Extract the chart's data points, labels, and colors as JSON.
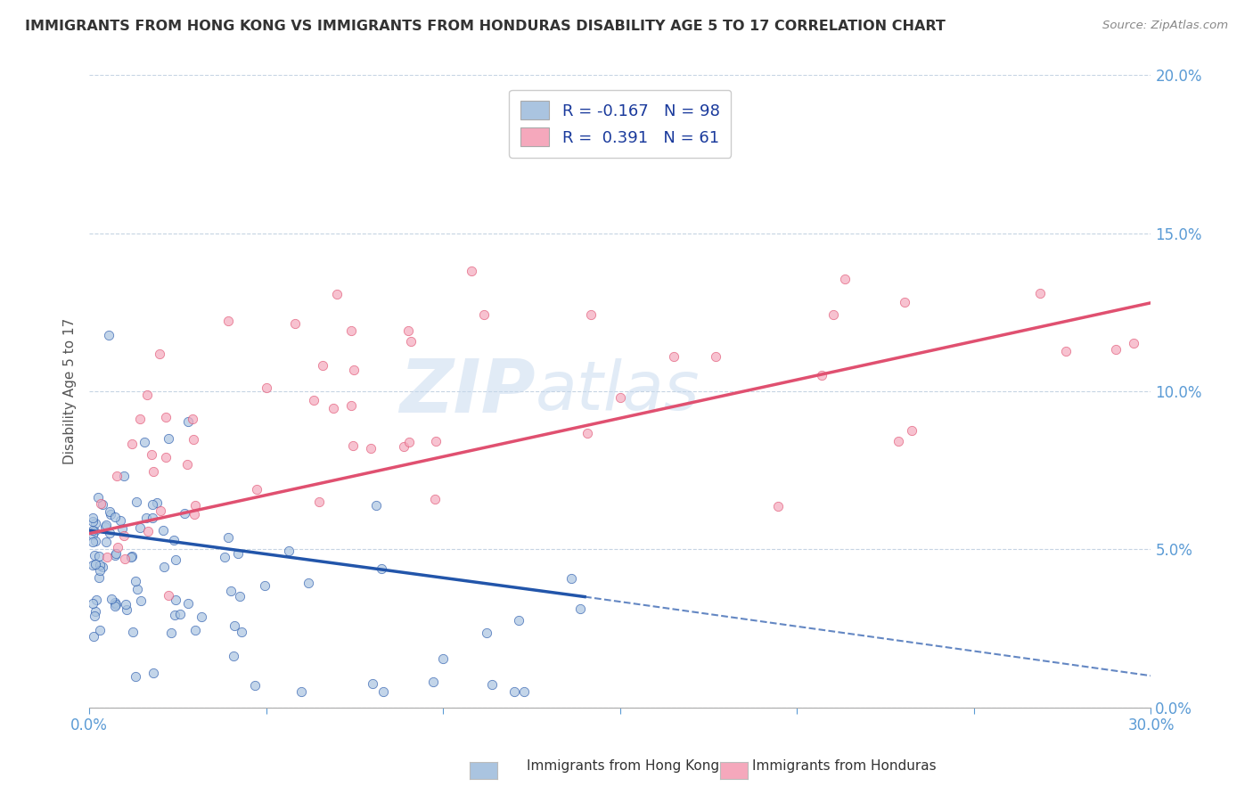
{
  "title": "IMMIGRANTS FROM HONG KONG VS IMMIGRANTS FROM HONDURAS DISABILITY AGE 5 TO 17 CORRELATION CHART",
  "source": "Source: ZipAtlas.com",
  "ylabel_label": "Disability Age 5 to 17",
  "legend_label_hk": "Immigrants from Hong Kong",
  "legend_label_hnd": "Immigrants from Honduras",
  "hk_color": "#aac4e0",
  "hnd_color": "#f5a8bc",
  "hk_line_color": "#2255aa",
  "hnd_line_color": "#e05070",
  "background_color": "#ffffff",
  "grid_color": "#c0d0e0",
  "xlim": [
    0.0,
    0.3
  ],
  "ylim": [
    0.0,
    0.2
  ],
  "hk_R": -0.167,
  "hk_N": 98,
  "hnd_R": 0.391,
  "hnd_N": 61,
  "watermark_color": "#c5d8ee",
  "watermark_alpha": 0.5
}
